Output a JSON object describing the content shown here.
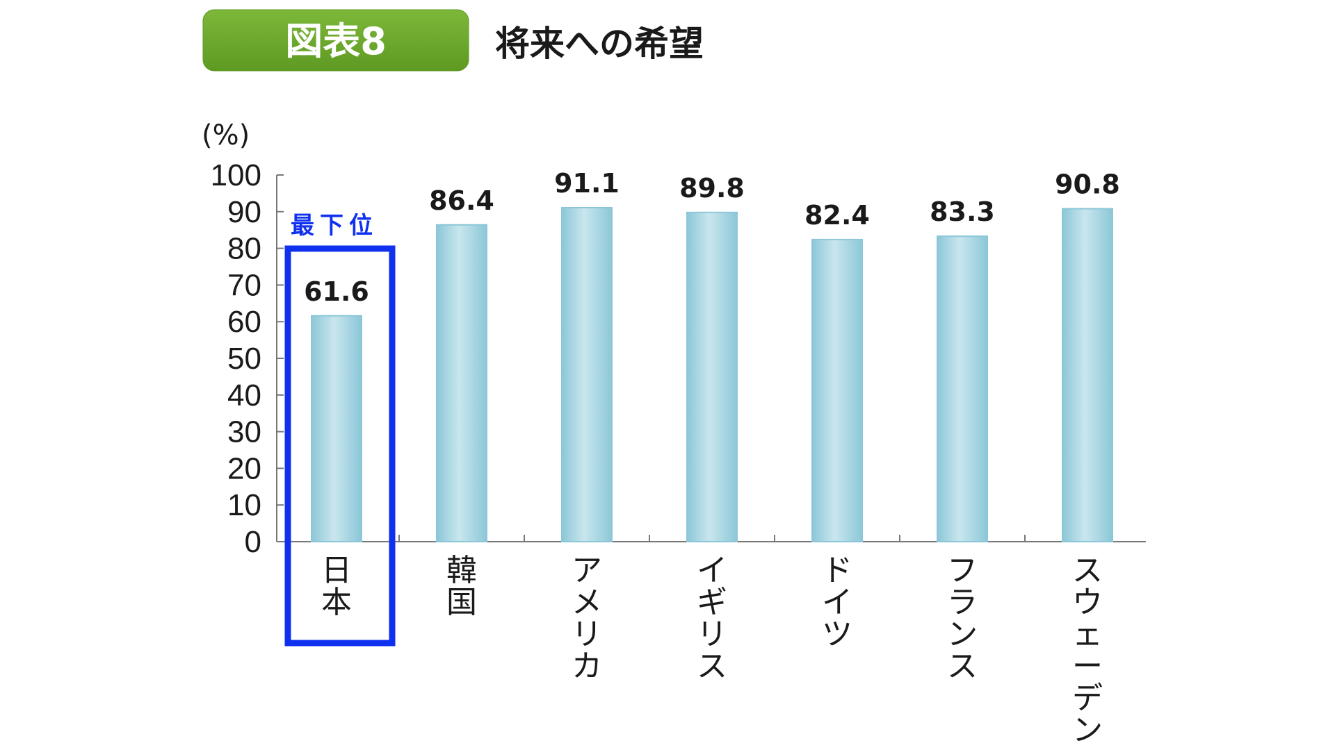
{
  "figure": {
    "badge": "図表8",
    "title": "将来への希望",
    "unit": "(%)"
  },
  "highlight": {
    "label": "最下位",
    "category": "日本"
  },
  "colors": {
    "badge_fill": "#7db83a",
    "badge_stroke": "#5e9a22",
    "bar_mid": "#c9e6ee",
    "bar_edge": "#8cc7d8",
    "axis": "#777777",
    "highlight": "#1030f0"
  },
  "chart_data": {
    "type": "bar",
    "categories": [
      "日本",
      "韓国",
      "アメリカ",
      "イギリス",
      "ドイツ",
      "フランス",
      "スウェーデン"
    ],
    "values": [
      61.6,
      86.4,
      91.1,
      89.8,
      82.4,
      83.3,
      90.8
    ],
    "value_labels": [
      "61.6",
      "86.4",
      "91.1",
      "89.8",
      "82.4",
      "83.3",
      "90.8"
    ],
    "yticks": [
      "0",
      "10",
      "20",
      "30",
      "40",
      "50",
      "60",
      "70",
      "80",
      "90",
      "100"
    ],
    "ylim": [
      0,
      100
    ],
    "title": "将来への希望",
    "ylabel": "(%)",
    "xlabel": "",
    "grid": false,
    "legend": "none"
  }
}
